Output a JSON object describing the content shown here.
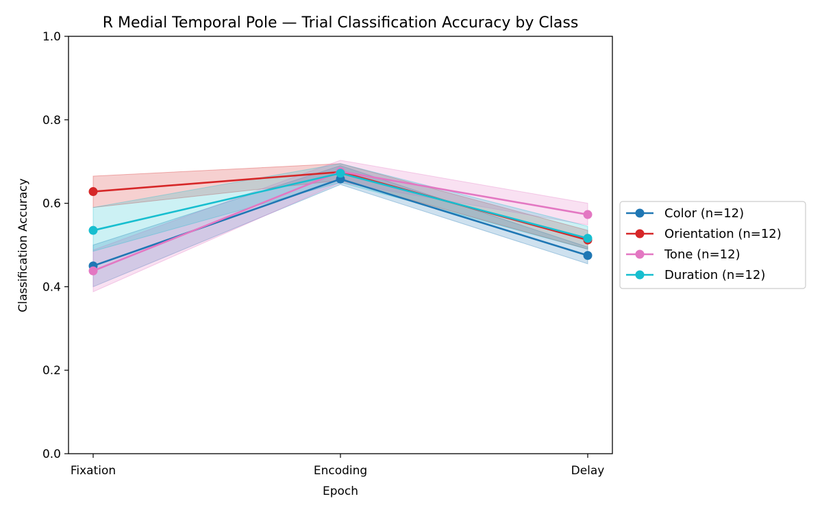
{
  "chart_data": {
    "type": "line",
    "title": "R Medial Temporal Pole — Trial Classification Accuracy by Class",
    "xlabel": "Epoch",
    "ylabel": "Classification Accuracy",
    "categories": [
      "Fixation",
      "Encoding",
      "Delay"
    ],
    "ylim": [
      0.0,
      1.0
    ],
    "yticks": [
      "0.0",
      "0.2",
      "0.4",
      "0.6",
      "0.8",
      "1.0"
    ],
    "grid": false,
    "legend_position": "right-outside",
    "series": [
      {
        "name": "Color (n=12)",
        "color": "#1f77b4",
        "values": [
          0.45,
          0.658,
          0.475
        ],
        "lower": [
          0.4,
          0.645,
          0.455
        ],
        "upper": [
          0.5,
          0.69,
          0.495
        ]
      },
      {
        "name": "Orientation (n=12)",
        "color": "#d62728",
        "values": [
          0.628,
          0.675,
          0.512
        ],
        "lower": [
          0.59,
          0.655,
          0.49
        ],
        "upper": [
          0.665,
          0.695,
          0.535
        ]
      },
      {
        "name": "Tone (n=12)",
        "color": "#e377c2",
        "values": [
          0.438,
          0.676,
          0.573
        ],
        "lower": [
          0.388,
          0.65,
          0.548
        ],
        "upper": [
          0.488,
          0.703,
          0.6
        ]
      },
      {
        "name": "Duration (n=12)",
        "color": "#17becf",
        "values": [
          0.535,
          0.672,
          0.516
        ],
        "lower": [
          0.485,
          0.65,
          0.49
        ],
        "upper": [
          0.59,
          0.695,
          0.545
        ]
      }
    ]
  }
}
